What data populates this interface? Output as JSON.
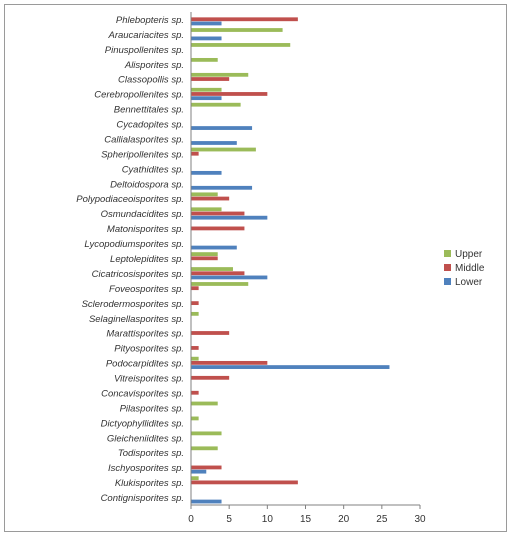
{
  "chart_data": {
    "type": "bar",
    "orientation": "horizontal",
    "categories": [
      "Phlebopteris sp.",
      "Araucariacites sp.",
      "Pinuspollenites sp.",
      "Alisporites sp.",
      "Classopollis sp.",
      "Cerebropollenites sp.",
      "Bennettitales sp.",
      "Cycadopites sp.",
      "Callialasporites sp.",
      "Spheripollenites sp.",
      "Cyathidites sp.",
      "Deltoidospora sp.",
      "Polypodiaceoisporites sp.",
      "Osmundacidites sp.",
      "Matonisporites sp.",
      "Lycopodiumsporites sp.",
      "Leptolepidites sp.",
      "Cicatricosisporites sp.",
      "Foveosporites sp.",
      "Sclerodermosporites sp.",
      "Selaginellasporites sp.",
      "Marattisporites sp.",
      "Pityosporites sp.",
      "Podocarpidites sp.",
      "Vitreisporites sp.",
      "Concavisporites sp.",
      "Pilasporites sp.",
      "Dictyophyllidites sp.",
      "Gleicheniidites sp.",
      "Todisporites sp.",
      "Ischyosporites sp.",
      "Klukisporites sp.",
      "Contignisporites sp."
    ],
    "series": [
      {
        "name": "Upper",
        "color": "#9bbb59",
        "values": [
          0,
          12,
          13,
          3.5,
          7.5,
          4,
          6.5,
          0,
          0,
          8.5,
          0,
          0,
          3.5,
          4,
          0,
          0,
          3.5,
          5.5,
          7.5,
          0,
          1,
          0,
          0,
          1,
          0,
          0,
          3.5,
          1,
          4,
          3.5,
          0,
          1,
          0
        ]
      },
      {
        "name": "Middle",
        "color": "#c0504d",
        "values": [
          14,
          0,
          0,
          0,
          5,
          10,
          0,
          0,
          0,
          1,
          0,
          0,
          5,
          7,
          7,
          0,
          3.5,
          7,
          1,
          1,
          0,
          5,
          1,
          10,
          5,
          1,
          0,
          0,
          0,
          0,
          4,
          14,
          0
        ]
      },
      {
        "name": "Lower",
        "color": "#4f81bd",
        "values": [
          4,
          4,
          0,
          0,
          0,
          4,
          0,
          8,
          6,
          0,
          4,
          8,
          0,
          10,
          0,
          6,
          0,
          10,
          0,
          0,
          0,
          0,
          0,
          26,
          0,
          0,
          0,
          0,
          0,
          0,
          2,
          0,
          4
        ]
      }
    ],
    "xlim": [
      0,
      30
    ],
    "xticks": [
      "0",
      "5",
      "10",
      "15",
      "20",
      "25",
      "30"
    ],
    "grid": false,
    "legend_position": "right"
  }
}
